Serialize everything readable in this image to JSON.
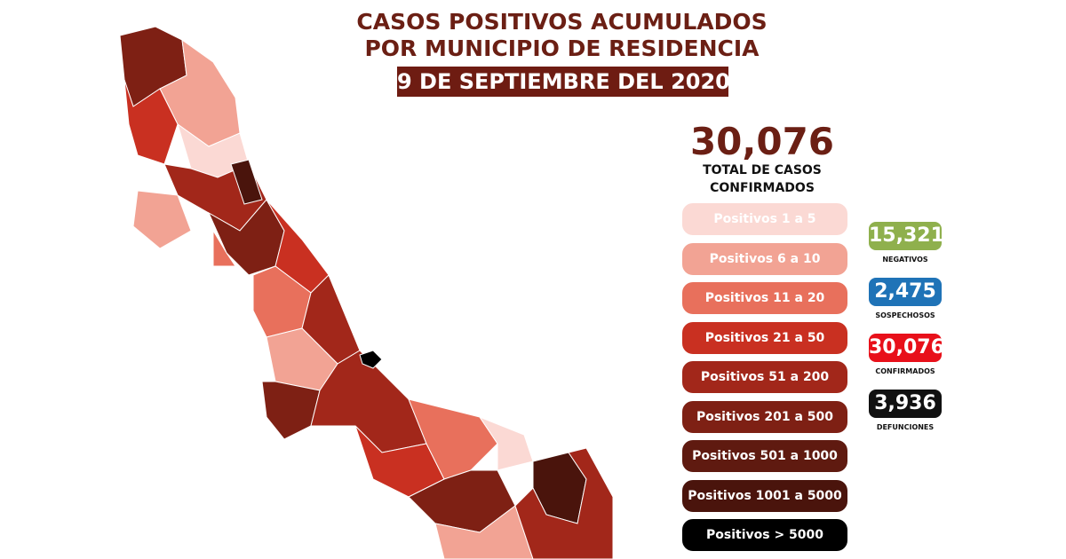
{
  "header": {
    "title_line1": "CASOS POSITIVOS ACUMULADOS",
    "title_line2": "POR MUNICIPIO DE RESIDENCIA",
    "date": "9 DE SEPTIEMBRE DEL 2020"
  },
  "total": {
    "value": "30,076",
    "label_line1": "TOTAL DE CASOS",
    "label_line2": "CONFIRMADOS"
  },
  "legend": [
    {
      "label": "Positivos 1 a 5",
      "color": "#fbd9d4"
    },
    {
      "label": "Positivos 6 a 10",
      "color": "#f2a394"
    },
    {
      "label": "Positivos 11 a 20",
      "color": "#e8705c"
    },
    {
      "label": "Positivos 21 a 50",
      "color": "#c93021"
    },
    {
      "label": "Positivos 51 a 200",
      "color": "#a2271a"
    },
    {
      "label": "Positivos 201 a 500",
      "color": "#7e2014"
    },
    {
      "label": "Positivos 501 a 1000",
      "color": "#5f1a10"
    },
    {
      "label": "Positivos 1001 a 5000",
      "color": "#4a140c"
    },
    {
      "label": "Positivos > 5000",
      "color": "#000000"
    }
  ],
  "stats": [
    {
      "value": "15,321",
      "label": "NEGATIVOS",
      "color": "#8fb04d"
    },
    {
      "value": "2,475",
      "label": "SOSPECHOSOS",
      "color": "#1f73b7"
    },
    {
      "value": "30,076",
      "label": "CONFIRMADOS",
      "color": "#e8101a"
    },
    {
      "value": "3,936",
      "label": "DEFUNCIONES",
      "color": "#111111"
    }
  ]
}
